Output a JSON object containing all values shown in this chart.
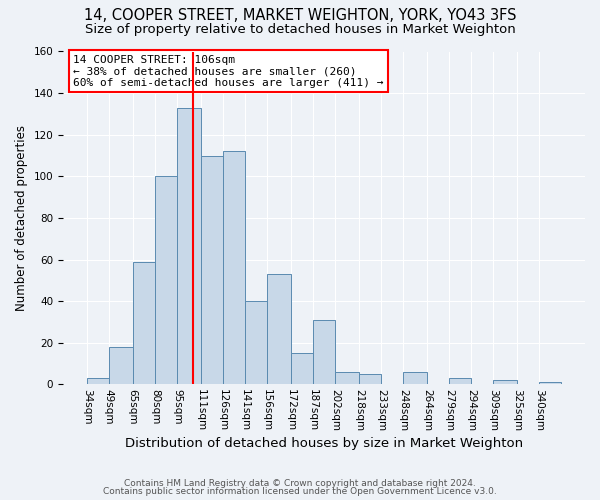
{
  "title1": "14, COOPER STREET, MARKET WEIGHTON, YORK, YO43 3FS",
  "title2": "Size of property relative to detached houses in Market Weighton",
  "xlabel": "Distribution of detached houses by size in Market Weighton",
  "ylabel": "Number of detached properties",
  "bin_labels": [
    "34sqm",
    "49sqm",
    "65sqm",
    "80sqm",
    "95sqm",
    "111sqm",
    "126sqm",
    "141sqm",
    "156sqm",
    "172sqm",
    "187sqm",
    "202sqm",
    "218sqm",
    "233sqm",
    "248sqm",
    "264sqm",
    "279sqm",
    "294sqm",
    "309sqm",
    "325sqm",
    "340sqm"
  ],
  "bin_edges": [
    34,
    49,
    65,
    80,
    95,
    111,
    126,
    141,
    156,
    172,
    187,
    202,
    218,
    233,
    248,
    264,
    279,
    294,
    309,
    325,
    340
  ],
  "bar_heights": [
    3,
    18,
    59,
    100,
    133,
    110,
    112,
    40,
    53,
    15,
    31,
    6,
    5,
    0,
    6,
    0,
    3,
    0,
    2,
    0,
    1
  ],
  "bar_color": "#c8d8e8",
  "bar_edge_color": "#5a8ab0",
  "vline_x": 106,
  "vline_color": "red",
  "annotation_title": "14 COOPER STREET: 106sqm",
  "annotation_line1": "← 38% of detached houses are smaller (260)",
  "annotation_line2": "60% of semi-detached houses are larger (411) →",
  "annotation_box_color": "white",
  "annotation_box_edge_color": "red",
  "ylim": [
    0,
    160
  ],
  "yticks": [
    0,
    20,
    40,
    60,
    80,
    100,
    120,
    140,
    160
  ],
  "footnote1": "Contains HM Land Registry data © Crown copyright and database right 2024.",
  "footnote2": "Contains public sector information licensed under the Open Government Licence v3.0.",
  "background_color": "#eef2f7",
  "grid_color": "white",
  "title1_fontsize": 10.5,
  "title2_fontsize": 9.5,
  "xlabel_fontsize": 9.5,
  "ylabel_fontsize": 8.5,
  "tick_fontsize": 7.5,
  "footnote_fontsize": 6.5
}
